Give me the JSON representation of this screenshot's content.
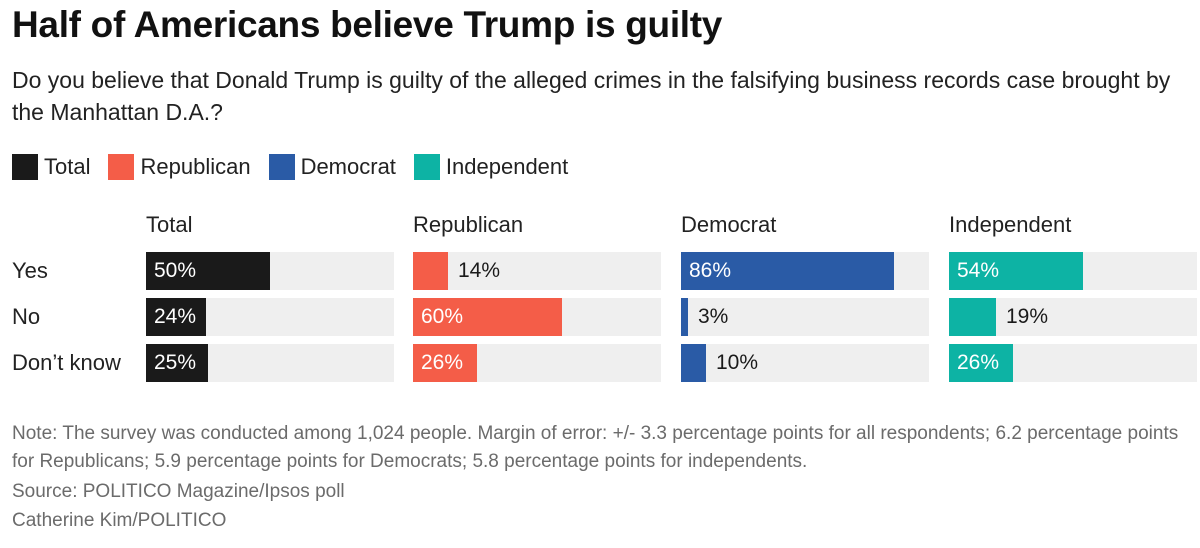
{
  "title": "Half of Americans believe Trump is guilty",
  "subtitle": "Do you believe that Donald Trump is guilty of the alleged crimes in the falsifying business records case brought by the Manhattan D.A.?",
  "legend": [
    {
      "label": "Total",
      "color": "#1a1a1a"
    },
    {
      "label": "Republican",
      "color": "#f45d48"
    },
    {
      "label": "Democrat",
      "color": "#2a5ba6"
    },
    {
      "label": "Independent",
      "color": "#0db3a4"
    }
  ],
  "chart_data": {
    "type": "bar",
    "title": "Half of Americans believe Trump is guilty",
    "categories": [
      "Yes",
      "No",
      "Don’t know"
    ],
    "xlim": [
      0,
      100
    ],
    "unit": "%",
    "series": [
      {
        "name": "Total",
        "color": "#1a1a1a",
        "values": [
          50,
          24,
          25
        ]
      },
      {
        "name": "Republican",
        "color": "#f45d48",
        "values": [
          14,
          60,
          26
        ]
      },
      {
        "name": "Democrat",
        "color": "#2a5ba6",
        "values": [
          86,
          3,
          10
        ]
      },
      {
        "name": "Independent",
        "color": "#0db3a4",
        "values": [
          54,
          19,
          26
        ]
      }
    ]
  },
  "footer": {
    "note": "Note: The survey was conducted among 1,024 people. Margin of error: +/- 3.3 percentage points for all respondents; 6.2 percentage points for Republicans; 5.9 percentage points for Democrats; 5.8 percentage points for independents.",
    "source": "Source: POLITICO Magazine/Ipsos poll",
    "credit": "Catherine Kim/POLITICO"
  }
}
